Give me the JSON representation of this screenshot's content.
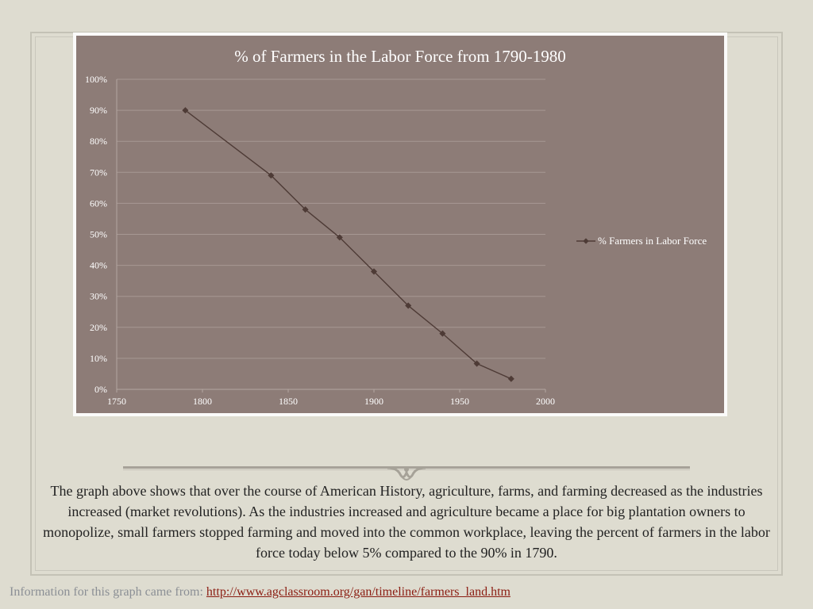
{
  "chart_data": {
    "type": "line",
    "title": "% of Farmers in the Labor Force from 1790-1980",
    "xlim": [
      1750,
      2000
    ],
    "ylim": [
      0,
      100
    ],
    "x_ticks": [
      "1750",
      "1800",
      "1850",
      "1900",
      "1950",
      "2000"
    ],
    "y_ticks": [
      "0%",
      "10%",
      "20%",
      "30%",
      "40%",
      "50%",
      "60%",
      "70%",
      "80%",
      "90%",
      "100%"
    ],
    "grid": true,
    "legend_position": "right",
    "series": [
      {
        "name": "% Farmers in Labor Force",
        "color": "#4e3b36",
        "marker": "diamond",
        "x": [
          1790,
          1840,
          1860,
          1880,
          1900,
          1920,
          1940,
          1960,
          1980
        ],
        "values": [
          90,
          69,
          58,
          49,
          38,
          27,
          18,
          8.3,
          3.4
        ]
      }
    ]
  },
  "description": "The graph above shows that over the course of American History, agriculture, farms, and farming decreased as the industries increased (market revolutions). As the industries increased and agriculture became a place for big plantation owners to monopolize, small farmers stopped farming and moved into the common workplace, leaving the percent of farmers in the labor force today below 5% compared to the 90% in 1790.",
  "source": {
    "prefix": "Information for this graph came from:",
    "link_text": "http://www.agclassroom.org/gan/timeline/farmers_land.htm"
  },
  "colors": {
    "background": "#dedcd0",
    "plot_area": "#8d7c77",
    "line": "#4e3b36",
    "link": "#8b1d12"
  }
}
